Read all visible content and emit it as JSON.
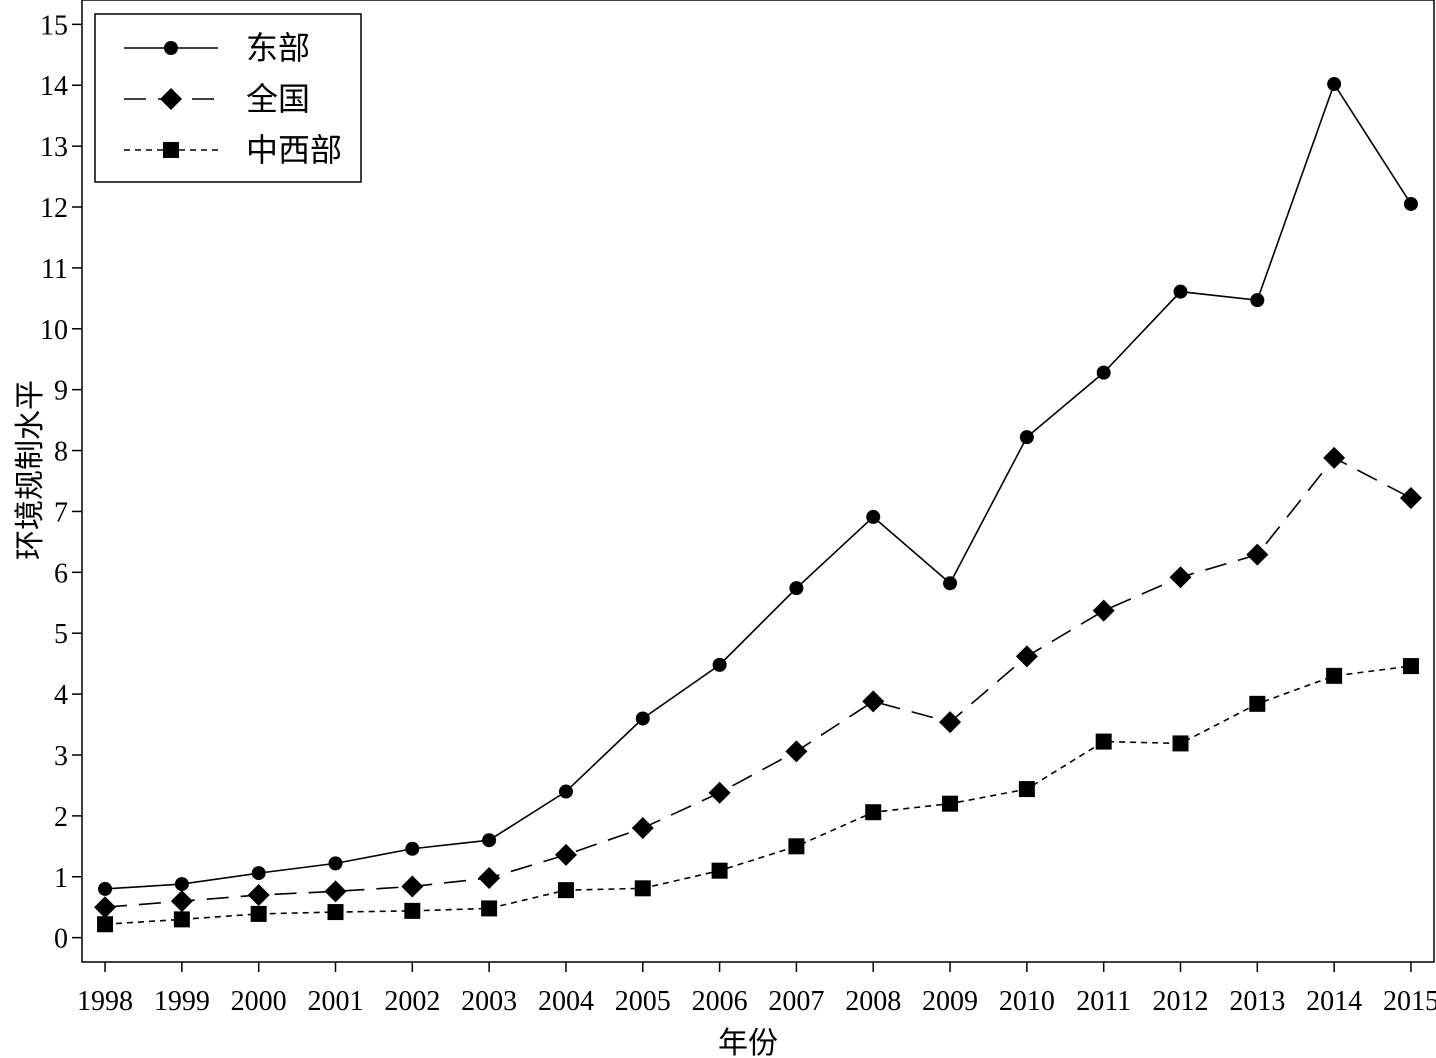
{
  "chart_data": {
    "type": "line",
    "xlabel": "年份",
    "ylabel": "环境规制水平",
    "ylim": [
      -0.4,
      15.4
    ],
    "xlim": [
      1997.7,
      2015.3
    ],
    "yticks": [
      0,
      1,
      2,
      3,
      4,
      5,
      6,
      7,
      8,
      9,
      10,
      11,
      12,
      13,
      14,
      15
    ],
    "categories": [
      "1998",
      "1999",
      "2000",
      "2001",
      "2002",
      "2003",
      "2004",
      "2005",
      "2006",
      "2007",
      "2008",
      "2009",
      "2010",
      "2011",
      "2012",
      "2013",
      "2014",
      "2015"
    ],
    "grid": false,
    "legend_position": "top-left",
    "series": [
      {
        "name": "东部",
        "line_style": "solid",
        "marker": "circle",
        "values": [
          0.8,
          0.88,
          1.06,
          1.22,
          1.46,
          1.6,
          2.4,
          3.6,
          4.48,
          5.74,
          6.91,
          5.82,
          8.22,
          9.28,
          10.61,
          10.47,
          14.02,
          12.05
        ]
      },
      {
        "name": "全国",
        "line_style": "dashed",
        "marker": "diamond",
        "values": [
          0.5,
          0.6,
          0.7,
          0.76,
          0.84,
          0.98,
          1.36,
          1.8,
          2.38,
          3.06,
          3.88,
          3.54,
          4.62,
          5.37,
          5.92,
          6.29,
          7.88,
          7.22
        ]
      },
      {
        "name": "中西部",
        "line_style": "dotted",
        "marker": "square",
        "values": [
          0.22,
          0.3,
          0.39,
          0.42,
          0.44,
          0.48,
          0.78,
          0.81,
          1.1,
          1.5,
          2.06,
          2.2,
          2.44,
          3.22,
          3.19,
          3.84,
          4.3,
          4.46
        ]
      }
    ]
  }
}
